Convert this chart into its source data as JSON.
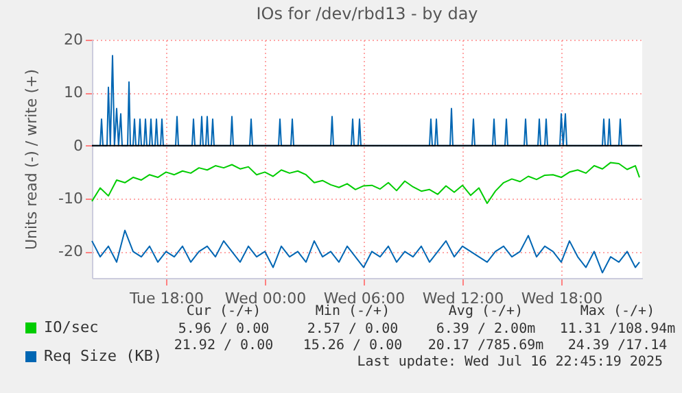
{
  "chart_data": {
    "type": "line",
    "title": "IOs for /dev/rbd13 - by day",
    "ylabel": "Units read (-) / write (+)",
    "x": [
      "2025-07-15T13:30",
      "2025-07-15T14:00",
      "2025-07-15T14:30",
      "2025-07-15T15:00",
      "2025-07-15T15:30",
      "2025-07-15T16:00",
      "2025-07-15T16:30",
      "2025-07-15T17:00",
      "2025-07-15T17:30",
      "2025-07-15T18:00",
      "2025-07-15T18:30",
      "2025-07-15T19:00",
      "2025-07-15T19:30",
      "2025-07-15T20:00",
      "2025-07-15T20:30",
      "2025-07-15T21:00",
      "2025-07-15T21:30",
      "2025-07-15T22:00",
      "2025-07-15T22:30",
      "2025-07-15T23:00",
      "2025-07-15T23:30",
      "2025-07-16T00:00",
      "2025-07-16T00:30",
      "2025-07-16T01:00",
      "2025-07-16T01:30",
      "2025-07-16T02:00",
      "2025-07-16T02:30",
      "2025-07-16T03:00",
      "2025-07-16T03:30",
      "2025-07-16T04:00",
      "2025-07-16T04:30",
      "2025-07-16T05:00",
      "2025-07-16T05:30",
      "2025-07-16T06:00",
      "2025-07-16T06:30",
      "2025-07-16T07:00",
      "2025-07-16T07:30",
      "2025-07-16T08:00",
      "2025-07-16T08:30",
      "2025-07-16T09:00",
      "2025-07-16T09:30",
      "2025-07-16T10:00",
      "2025-07-16T10:30",
      "2025-07-16T11:00",
      "2025-07-16T11:30",
      "2025-07-16T12:00",
      "2025-07-16T12:30",
      "2025-07-16T13:00",
      "2025-07-16T13:30",
      "2025-07-16T14:00",
      "2025-07-16T14:30",
      "2025-07-16T15:00",
      "2025-07-16T15:30",
      "2025-07-16T16:00",
      "2025-07-16T16:30",
      "2025-07-16T17:00",
      "2025-07-16T17:30",
      "2025-07-16T18:00",
      "2025-07-16T18:30",
      "2025-07-16T19:00",
      "2025-07-16T19:30",
      "2025-07-16T20:00",
      "2025-07-16T20:30",
      "2025-07-16T21:00",
      "2025-07-16T21:30",
      "2025-07-16T22:00",
      "2025-07-16T22:30",
      "2025-07-16T22:45"
    ],
    "series": [
      {
        "name": "IO/sec",
        "color": "#00cc00",
        "values": [
          -10.5,
          -8,
          -9.5,
          -6.5,
          -7,
          -6,
          -6.5,
          -5.5,
          -6,
          -5,
          -5.5,
          -4.8,
          -5.2,
          -4.2,
          -4.6,
          -3.8,
          -4.2,
          -3.6,
          -4.4,
          -4,
          -5.5,
          -5,
          -5.8,
          -4.6,
          -5.2,
          -4.8,
          -5.5,
          -7,
          -6.6,
          -7.4,
          -7.9,
          -7.2,
          -8.3,
          -7.6,
          -7.5,
          -8.2,
          -7,
          -8.5,
          -6.7,
          -7.8,
          -8.6,
          -8.3,
          -9.2,
          -7.6,
          -8.8,
          -7.5,
          -9.4,
          -8,
          -10.9,
          -8.6,
          -7,
          -6.3,
          -6.8,
          -5.8,
          -6.4,
          -5.6,
          -5.5,
          -6,
          -5,
          -4.6,
          -5.2,
          -3.8,
          -4.4,
          -3.2,
          -3.4,
          -4.5,
          -3.8,
          -6
        ]
      },
      {
        "name": "Req Size (KB)",
        "color": "#0066b3",
        "values": [
          -18,
          -21,
          -19,
          -22,
          -16,
          -20,
          -21,
          -19,
          -22,
          -20,
          -21,
          -19,
          -22,
          -20,
          -19,
          -21,
          -18,
          -20,
          -22,
          -19,
          -21,
          -20,
          -23,
          -19,
          -21,
          -20,
          -22,
          -18,
          -21,
          -20,
          -22,
          -19,
          -21,
          -23,
          -20,
          -21,
          -19,
          -22,
          -20,
          -21,
          -19,
          -22,
          -20,
          -18,
          -21,
          -19,
          -20,
          -21,
          -22,
          -20,
          -19,
          -21,
          -20,
          -17,
          -21,
          -19,
          -20,
          -22,
          -18,
          -21,
          -23,
          -20,
          -24,
          -21,
          -22,
          -20,
          -23,
          -22
        ]
      },
      {
        "color": "#0066b3",
        "x": [
          "2025-07-15T13:30",
          "2025-07-15T14:00",
          "2025-07-15T14:05",
          "2025-07-15T14:10",
          "2025-07-15T14:25",
          "2025-07-15T14:30",
          "2025-07-15T14:37",
          "2025-07-15T14:45",
          "2025-07-15T14:52",
          "2025-07-15T15:00",
          "2025-07-15T15:07",
          "2025-07-15T15:15",
          "2025-07-15T15:20",
          "2025-07-15T15:40",
          "2025-07-15T15:45",
          "2025-07-15T15:50",
          "2025-07-15T16:00",
          "2025-07-15T16:05",
          "2025-07-15T16:10",
          "2025-07-15T16:20",
          "2025-07-15T16:25",
          "2025-07-15T16:30",
          "2025-07-15T16:40",
          "2025-07-15T16:45",
          "2025-07-15T16:50",
          "2025-07-15T17:00",
          "2025-07-15T17:05",
          "2025-07-15T17:10",
          "2025-07-15T17:20",
          "2025-07-15T17:25",
          "2025-07-15T17:30",
          "2025-07-15T17:40",
          "2025-07-15T17:45",
          "2025-07-15T17:50",
          "2025-07-15T18:35",
          "2025-07-15T18:40",
          "2025-07-15T18:45",
          "2025-07-15T19:35",
          "2025-07-15T19:40",
          "2025-07-15T19:45",
          "2025-07-15T20:05",
          "2025-07-15T20:10",
          "2025-07-15T20:15",
          "2025-07-15T20:25",
          "2025-07-15T20:30",
          "2025-07-15T20:35",
          "2025-07-15T20:45",
          "2025-07-15T20:50",
          "2025-07-15T20:55",
          "2025-07-15T21:55",
          "2025-07-15T22:00",
          "2025-07-15T22:05",
          "2025-07-15T23:05",
          "2025-07-15T23:10",
          "2025-07-15T23:15",
          "2025-07-16T00:50",
          "2025-07-16T00:55",
          "2025-07-16T01:00",
          "2025-07-16T01:35",
          "2025-07-16T01:40",
          "2025-07-16T01:45",
          "2025-07-16T04:00",
          "2025-07-16T04:05",
          "2025-07-16T04:10",
          "2025-07-16T05:15",
          "2025-07-16T05:20",
          "2025-07-16T05:25",
          "2025-07-16T05:40",
          "2025-07-16T05:45",
          "2025-07-16T05:50",
          "2025-07-16T10:00",
          "2025-07-16T10:05",
          "2025-07-16T10:10",
          "2025-07-16T10:20",
          "2025-07-16T10:25",
          "2025-07-16T10:30",
          "2025-07-16T11:15",
          "2025-07-16T11:20",
          "2025-07-16T11:25",
          "2025-07-16T12:35",
          "2025-07-16T12:40",
          "2025-07-16T12:45",
          "2025-07-16T13:50",
          "2025-07-16T13:55",
          "2025-07-16T14:00",
          "2025-07-16T14:35",
          "2025-07-16T14:40",
          "2025-07-16T14:45",
          "2025-07-16T15:45",
          "2025-07-16T15:50",
          "2025-07-16T15:55",
          "2025-07-16T16:35",
          "2025-07-16T16:40",
          "2025-07-16T16:45",
          "2025-07-16T17:00",
          "2025-07-16T17:05",
          "2025-07-16T17:10",
          "2025-07-16T17:55",
          "2025-07-16T18:00",
          "2025-07-16T18:07",
          "2025-07-16T18:15",
          "2025-07-16T18:20",
          "2025-07-16T20:30",
          "2025-07-16T20:35",
          "2025-07-16T20:40",
          "2025-07-16T20:50",
          "2025-07-16T20:55",
          "2025-07-16T21:00",
          "2025-07-16T21:30",
          "2025-07-16T21:35",
          "2025-07-16T21:40",
          "2025-07-16T22:45"
        ],
        "values": [
          0,
          0,
          5,
          0,
          0,
          11,
          0,
          17,
          0,
          7,
          0,
          6,
          0,
          0,
          12,
          0,
          0,
          5,
          0,
          0,
          5,
          0,
          0,
          5,
          0,
          0,
          5,
          0,
          0,
          5,
          0,
          0,
          5,
          0,
          0,
          5.5,
          0,
          0,
          5,
          0,
          0,
          5.5,
          0,
          0,
          5.5,
          0,
          0,
          5,
          0,
          0,
          5.5,
          0,
          0,
          5,
          0,
          0,
          5,
          0,
          0,
          5,
          0,
          0,
          5.5,
          0,
          0,
          5,
          0,
          0,
          5,
          0,
          0,
          5,
          0,
          0,
          5,
          0,
          0,
          7,
          0,
          0,
          5,
          0,
          0,
          5,
          0,
          0,
          5,
          0,
          0,
          5,
          0,
          0,
          5,
          0,
          0,
          5,
          0,
          0,
          6,
          0,
          6,
          0,
          0,
          5,
          0,
          0,
          5,
          0,
          0,
          5,
          0,
          0
        ]
      }
    ],
    "xlim": [
      "2025-07-15T13:30",
      "2025-07-16T22:55"
    ],
    "xticks": [
      {
        "value": "2025-07-15T18:00",
        "label": "Tue 18:00"
      },
      {
        "value": "2025-07-16T00:00",
        "label": "Wed 00:00"
      },
      {
        "value": "2025-07-16T06:00",
        "label": "Wed 06:00"
      },
      {
        "value": "2025-07-16T12:00",
        "label": "Wed 12:00"
      },
      {
        "value": "2025-07-16T18:00",
        "label": "Wed 18:00"
      }
    ],
    "ylim": [
      -25,
      20
    ],
    "yticks": [
      -20,
      -10,
      0,
      10,
      20
    ],
    "grid": true,
    "legend": "bottom left",
    "ref_lines": [
      {
        "axis": "y",
        "value": 0,
        "color": "#000000"
      }
    ],
    "annotations": [
      "Cur (-/+)",
      "Min (-/+)",
      "Avg (-/+)",
      "Max (-/+)",
      "5.96 / 0.00",
      "2.57 / 0.00",
      "6.39 / 2.00m",
      "11.31 /108.94m",
      "21.92 / 0.00",
      "15.26 / 0.00",
      "20.17 /785.69m",
      "24.39 /17.14",
      "Last update: Wed Jul 16 22:45:19 2025"
    ]
  }
}
